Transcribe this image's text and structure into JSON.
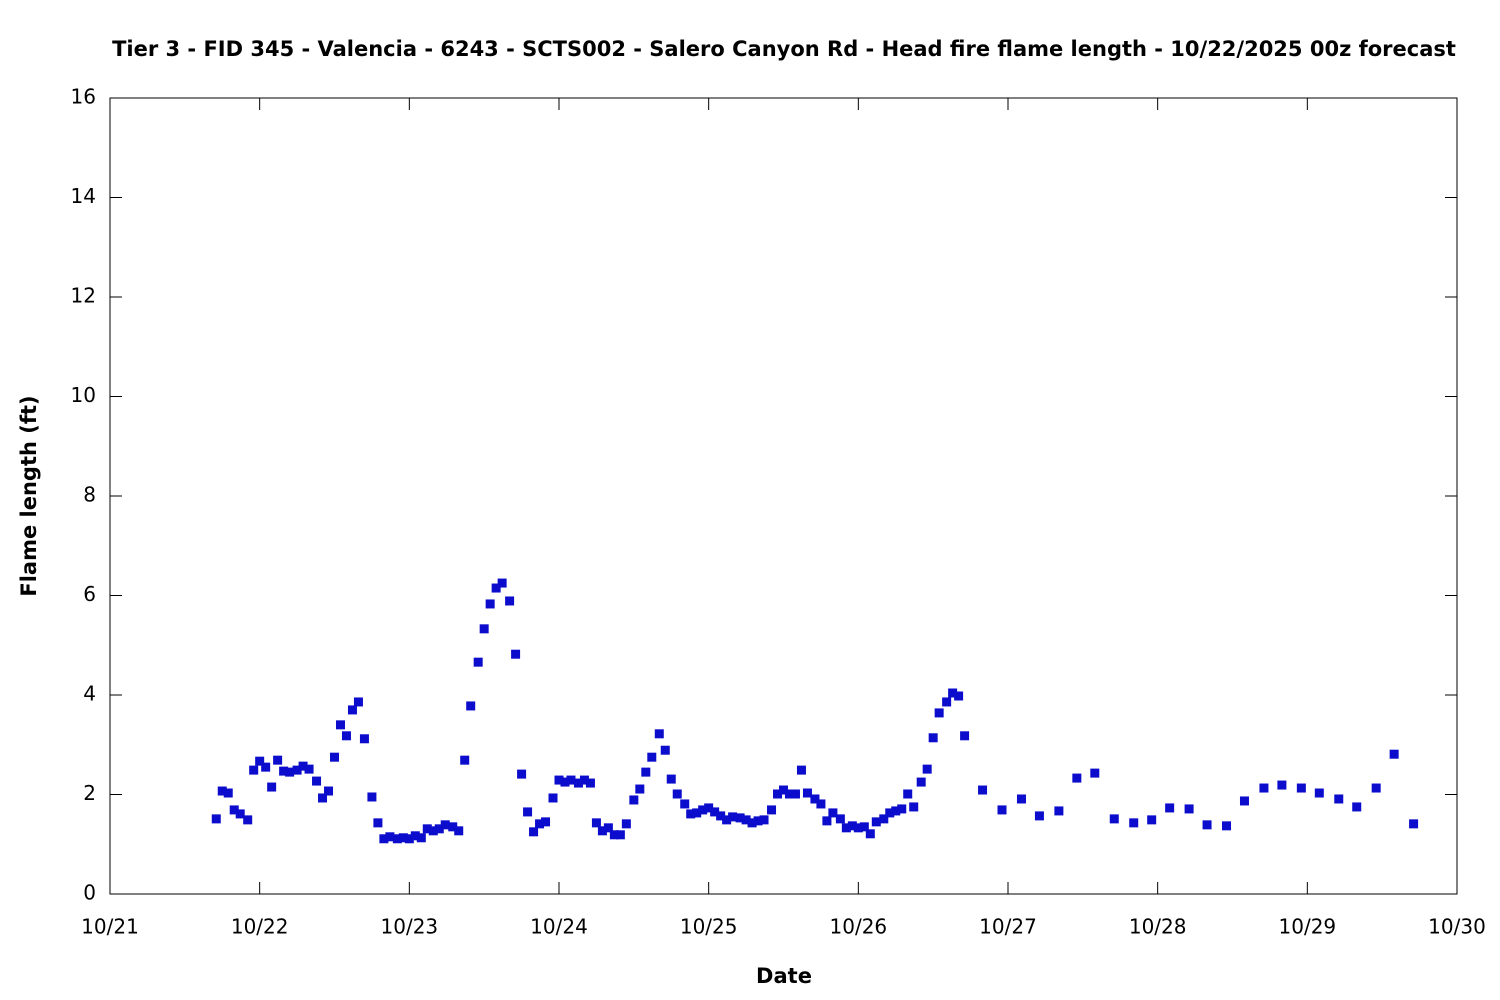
{
  "chart_data": {
    "type": "scatter",
    "title": "Tier 3 - FID 345 - Valencia - 6243 - SCTS002 - Salero Canyon Rd - Head fire flame length - 10/22/2025 00z forecast",
    "xlabel": "Date",
    "ylabel": "Flame length (ft)",
    "color": "#0c0ccc",
    "xlim": [
      21,
      30
    ],
    "xticks": [
      {
        "value": 21,
        "label": "10/21"
      },
      {
        "value": 22,
        "label": "10/22"
      },
      {
        "value": 23,
        "label": "10/23"
      },
      {
        "value": 24,
        "label": "10/24"
      },
      {
        "value": 25,
        "label": "10/25"
      },
      {
        "value": 26,
        "label": "10/26"
      },
      {
        "value": 27,
        "label": "10/27"
      },
      {
        "value": 28,
        "label": "10/28"
      },
      {
        "value": 29,
        "label": "10/29"
      },
      {
        "value": 30,
        "label": "10/30"
      }
    ],
    "ylim": [
      0,
      16
    ],
    "yticks": [
      0,
      2,
      4,
      6,
      8,
      10,
      12,
      14,
      16
    ],
    "x": [
      21.71,
      21.75,
      21.79,
      21.83,
      21.87,
      21.92,
      21.96,
      22.0,
      22.04,
      22.08,
      22.12,
      22.16,
      22.2,
      22.25,
      22.29,
      22.33,
      22.38,
      22.42,
      22.46,
      22.5,
      22.54,
      22.58,
      22.62,
      22.66,
      22.7,
      22.75,
      22.79,
      22.83,
      22.87,
      22.92,
      22.96,
      23.0,
      23.04,
      23.08,
      23.12,
      23.16,
      23.2,
      23.24,
      23.29,
      23.33,
      23.37,
      23.41,
      23.46,
      23.5,
      23.54,
      23.58,
      23.62,
      23.67,
      23.71,
      23.75,
      23.79,
      23.83,
      23.87,
      23.91,
      23.96,
      24.0,
      24.04,
      24.08,
      24.13,
      24.17,
      24.21,
      24.25,
      24.29,
      24.33,
      24.37,
      24.41,
      24.45,
      24.5,
      24.54,
      24.58,
      24.62,
      24.67,
      24.71,
      24.75,
      24.79,
      24.84,
      24.88,
      24.92,
      24.96,
      25.0,
      25.04,
      25.08,
      25.12,
      25.16,
      25.21,
      25.25,
      25.29,
      25.33,
      25.37,
      25.42,
      25.46,
      25.5,
      25.54,
      25.58,
      25.62,
      25.66,
      25.71,
      25.75,
      25.79,
      25.83,
      25.88,
      25.92,
      25.96,
      26.0,
      26.04,
      26.08,
      26.12,
      26.17,
      26.21,
      26.25,
      26.29,
      26.33,
      26.37,
      26.42,
      26.46,
      26.5,
      26.54,
      26.59,
      26.63,
      26.67,
      26.71,
      26.83,
      26.96,
      27.09,
      27.21,
      27.34,
      27.46,
      27.58,
      27.71,
      27.84,
      27.96,
      28.08,
      28.21,
      28.33,
      28.46,
      28.58,
      28.71,
      28.83,
      28.96,
      29.08,
      29.21,
      29.33,
      29.46,
      29.58,
      29.71
    ],
    "values": [
      1.51,
      2.07,
      2.03,
      1.69,
      1.61,
      1.49,
      2.49,
      2.67,
      2.55,
      2.15,
      2.69,
      2.47,
      2.45,
      2.49,
      2.57,
      2.51,
      2.27,
      1.93,
      2.07,
      2.75,
      3.4,
      3.18,
      3.7,
      3.86,
      3.12,
      1.95,
      1.43,
      1.11,
      1.15,
      1.11,
      1.13,
      1.11,
      1.17,
      1.13,
      1.31,
      1.27,
      1.31,
      1.39,
      1.35,
      1.27,
      2.69,
      3.78,
      4.66,
      5.33,
      5.83,
      6.15,
      6.25,
      5.89,
      4.82,
      2.41,
      1.65,
      1.25,
      1.41,
      1.45,
      1.93,
      2.29,
      2.25,
      2.29,
      2.23,
      2.29,
      2.23,
      1.43,
      1.27,
      1.33,
      1.19,
      1.19,
      1.41,
      1.89,
      2.11,
      2.45,
      2.75,
      3.22,
      2.89,
      2.31,
      2.01,
      1.81,
      1.61,
      1.63,
      1.69,
      1.73,
      1.65,
      1.57,
      1.49,
      1.55,
      1.53,
      1.49,
      1.43,
      1.47,
      1.49,
      1.69,
      2.01,
      2.09,
      2.01,
      2.01,
      2.49,
      2.03,
      1.91,
      1.81,
      1.47,
      1.63,
      1.51,
      1.33,
      1.37,
      1.33,
      1.35,
      1.21,
      1.45,
      1.51,
      1.63,
      1.67,
      1.71,
      2.01,
      1.75,
      2.25,
      2.51,
      3.14,
      3.64,
      3.86,
      4.04,
      3.98,
      3.18,
      2.09,
      1.69,
      1.91,
      1.57,
      1.67,
      2.33,
      2.43,
      1.51,
      1.43,
      1.49,
      1.73,
      1.71,
      1.39,
      1.37,
      1.87,
      2.13,
      2.19,
      2.13,
      2.03,
      1.91,
      1.75,
      2.13,
      2.81,
      1.41
    ]
  }
}
